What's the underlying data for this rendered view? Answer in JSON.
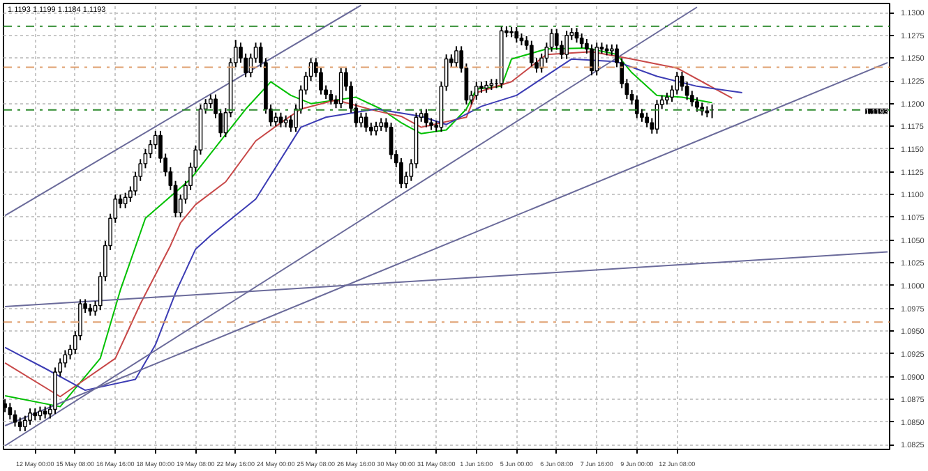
{
  "chart_data": {
    "type": "candlestick",
    "title": "1.1193 1.1199 1.1184 1.1193",
    "color": "#000000",
    "categories": [
      null,
      null,
      null,
      null,
      null,
      null,
      "12 May 00:00",
      null,
      null,
      null,
      null,
      null,
      null,
      null,
      "15 May 08:00",
      null,
      null,
      null,
      null,
      null,
      null,
      null,
      "16 May 16:00",
      null,
      null,
      null,
      null,
      null,
      null,
      null,
      "18 May 00:00",
      null,
      null,
      null,
      null,
      null,
      null,
      null,
      "19 May 08:00",
      null,
      null,
      null,
      null,
      null,
      null,
      null,
      "22 May 16:00",
      null,
      null,
      null,
      null,
      null,
      null,
      null,
      "24 May 00:00",
      null,
      null,
      null,
      null,
      null,
      null,
      null,
      "25 May 08:00",
      null,
      null,
      null,
      null,
      null,
      null,
      null,
      "26 May 16:00",
      null,
      null,
      null,
      null,
      null,
      null,
      null,
      "30 May 00:00",
      null,
      null,
      null,
      null,
      null,
      null,
      null,
      "31 May 08:00",
      null,
      null,
      null,
      null,
      null,
      null,
      null,
      "1 Jun 16:00",
      null,
      null,
      null,
      null,
      null,
      null,
      null,
      "5 Jun 00:00",
      null,
      null,
      null,
      null,
      null,
      null,
      null,
      "6 Jun 08:00",
      null,
      null,
      null,
      null,
      null,
      null,
      null,
      "7 Jun 16:00",
      null,
      null,
      null,
      null,
      null,
      null,
      null,
      "9 Jun 00:00",
      null,
      null,
      null,
      null,
      null,
      null,
      null,
      "12 Jun 08:00",
      null,
      null,
      null,
      null,
      null,
      null,
      null,
      null,
      null,
      null,
      null,
      null,
      null,
      null,
      null,
      null,
      null,
      null,
      null,
      null,
      null,
      null,
      null,
      null,
      null,
      null,
      null,
      null,
      null,
      null,
      null,
      null,
      null,
      null,
      null,
      null,
      null,
      null,
      null,
      null,
      null,
      null
    ],
    "ohlc": [
      [
        1.087,
        1.0875,
        1.0861,
        1.0866
      ],
      [
        1.0866,
        1.0871,
        1.0853,
        1.0858
      ],
      [
        1.0858,
        1.0863,
        1.0845,
        1.085
      ],
      [
        1.085,
        1.0855,
        1.084,
        1.0845
      ],
      [
        1.0845,
        1.0857,
        1.084,
        1.0852
      ],
      [
        1.0852,
        1.0865,
        1.0847,
        1.086
      ],
      [
        1.086,
        1.0865,
        1.0852,
        1.0857
      ],
      [
        1.0857,
        1.0867,
        1.0852,
        1.0862
      ],
      [
        1.0862,
        1.0867,
        1.0854,
        1.0859
      ],
      [
        1.0859,
        1.0869,
        1.0854,
        1.0864
      ],
      [
        1.0864,
        1.091,
        1.0859,
        1.0905
      ],
      [
        1.0905,
        1.092,
        1.09,
        1.0915
      ],
      [
        1.0915,
        1.0929,
        1.091,
        1.0924
      ],
      [
        1.0924,
        1.0935,
        1.0919,
        1.093
      ],
      [
        1.093,
        1.095,
        1.0925,
        1.0945
      ],
      [
        1.0945,
        1.0985,
        1.094,
        1.098
      ],
      [
        1.098,
        1.0985,
        1.097,
        1.0975
      ],
      [
        1.0975,
        1.098,
        1.0967,
        1.0972
      ],
      [
        1.0972,
        1.0983,
        1.0967,
        1.0978
      ],
      [
        1.0978,
        1.1015,
        1.0973,
        1.101
      ],
      [
        1.101,
        1.1049,
        1.1005,
        1.1044
      ],
      [
        1.1044,
        1.1079,
        1.1039,
        1.1074
      ],
      [
        1.1074,
        1.11,
        1.1069,
        1.1095
      ],
      [
        1.1095,
        1.11,
        1.1085,
        1.109
      ],
      [
        1.109,
        1.1102,
        1.1085,
        1.1097
      ],
      [
        1.1097,
        1.1109,
        1.1092,
        1.1104
      ],
      [
        1.1104,
        1.1125,
        1.1099,
        1.112
      ],
      [
        1.112,
        1.1139,
        1.1115,
        1.1134
      ],
      [
        1.1134,
        1.115,
        1.1129,
        1.1145
      ],
      [
        1.1145,
        1.116,
        1.114,
        1.1155
      ],
      [
        1.1155,
        1.117,
        1.115,
        1.1165
      ],
      [
        1.1165,
        1.117,
        1.1135,
        1.114
      ],
      [
        1.114,
        1.1145,
        1.112,
        1.1125
      ],
      [
        1.1125,
        1.113,
        1.1105,
        1.111
      ],
      [
        1.111,
        1.1115,
        1.1075,
        1.108
      ],
      [
        1.108,
        1.11,
        1.1075,
        1.1095
      ],
      [
        1.1095,
        1.1115,
        1.109,
        1.111
      ],
      [
        1.111,
        1.1135,
        1.1105,
        1.113
      ],
      [
        1.113,
        1.1154,
        1.1125,
        1.1149
      ],
      [
        1.1149,
        1.1199,
        1.1144,
        1.1194
      ],
      [
        1.1194,
        1.1205,
        1.1189,
        1.12
      ],
      [
        1.12,
        1.121,
        1.1195,
        1.1205
      ],
      [
        1.1205,
        1.121,
        1.1184,
        1.1189
      ],
      [
        1.1189,
        1.1194,
        1.1163,
        1.1168
      ],
      [
        1.1168,
        1.1195,
        1.1163,
        1.119
      ],
      [
        1.119,
        1.125,
        1.1185,
        1.1245
      ],
      [
        1.1245,
        1.127,
        1.124,
        1.1262
      ],
      [
        1.1262,
        1.1267,
        1.1245,
        1.125
      ],
      [
        1.125,
        1.1255,
        1.1229,
        1.1234
      ],
      [
        1.1234,
        1.1255,
        1.1229,
        1.125
      ],
      [
        1.125,
        1.1267,
        1.1245,
        1.1262
      ],
      [
        1.1262,
        1.1267,
        1.124,
        1.1245
      ],
      [
        1.1245,
        1.125,
        1.1189,
        1.1194
      ],
      [
        1.1194,
        1.1199,
        1.1175,
        1.118
      ],
      [
        1.118,
        1.119,
        1.1175,
        1.1185
      ],
      [
        1.1185,
        1.119,
        1.1174,
        1.1179
      ],
      [
        1.1179,
        1.1187,
        1.1174,
        1.1182
      ],
      [
        1.1182,
        1.1187,
        1.1169,
        1.1174
      ],
      [
        1.1174,
        1.1199,
        1.1169,
        1.1194
      ],
      [
        1.1194,
        1.122,
        1.1189,
        1.1215
      ],
      [
        1.1215,
        1.1235,
        1.121,
        1.123
      ],
      [
        1.123,
        1.125,
        1.1225,
        1.1245
      ],
      [
        1.1245,
        1.125,
        1.1229,
        1.1234
      ],
      [
        1.1234,
        1.1239,
        1.121,
        1.1215
      ],
      [
        1.1215,
        1.122,
        1.1205,
        1.121
      ],
      [
        1.121,
        1.1215,
        1.1199,
        1.1204
      ],
      [
        1.1204,
        1.1209,
        1.1195,
        1.12
      ],
      [
        1.12,
        1.1239,
        1.1195,
        1.1234
      ],
      [
        1.1234,
        1.1239,
        1.1214,
        1.1219
      ],
      [
        1.1219,
        1.1224,
        1.119,
        1.1195
      ],
      [
        1.1195,
        1.12,
        1.1174,
        1.1179
      ],
      [
        1.1179,
        1.119,
        1.1174,
        1.1185
      ],
      [
        1.1185,
        1.119,
        1.1169,
        1.1174
      ],
      [
        1.1174,
        1.1179,
        1.1165,
        1.117
      ],
      [
        1.117,
        1.118,
        1.1165,
        1.1175
      ],
      [
        1.1175,
        1.1184,
        1.117,
        1.1179
      ],
      [
        1.1179,
        1.1184,
        1.1169,
        1.1174
      ],
      [
        1.1174,
        1.1179,
        1.1139,
        1.1144
      ],
      [
        1.1144,
        1.1149,
        1.113,
        1.1135
      ],
      [
        1.1135,
        1.114,
        1.1107,
        1.1112
      ],
      [
        1.1112,
        1.1125,
        1.1107,
        1.112
      ],
      [
        1.112,
        1.1139,
        1.1115,
        1.1134
      ],
      [
        1.1134,
        1.119,
        1.1129,
        1.1185
      ],
      [
        1.1185,
        1.1194,
        1.118,
        1.1189
      ],
      [
        1.1189,
        1.1194,
        1.1174,
        1.1179
      ],
      [
        1.1179,
        1.1184,
        1.1171,
        1.1176
      ],
      [
        1.1176,
        1.1181,
        1.1169,
        1.1174
      ],
      [
        1.1174,
        1.1224,
        1.1169,
        1.1219
      ],
      [
        1.1219,
        1.1254,
        1.1214,
        1.1249
      ],
      [
        1.1249,
        1.1254,
        1.124,
        1.1245
      ],
      [
        1.1245,
        1.1263,
        1.124,
        1.1258
      ],
      [
        1.1258,
        1.1263,
        1.1234,
        1.1239
      ],
      [
        1.1239,
        1.1244,
        1.1199,
        1.1204
      ],
      [
        1.1204,
        1.1214,
        1.1199,
        1.1209
      ],
      [
        1.1209,
        1.1224,
        1.1204,
        1.1219
      ],
      [
        1.1219,
        1.1224,
        1.1212,
        1.1217
      ],
      [
        1.1217,
        1.1225,
        1.1212,
        1.122
      ],
      [
        1.122,
        1.1227,
        1.1215,
        1.1222
      ],
      [
        1.1222,
        1.1227,
        1.1217,
        1.1222
      ],
      [
        1.1222,
        1.1285,
        1.1217,
        1.128
      ],
      [
        1.128,
        1.1285,
        1.1273,
        1.1278
      ],
      [
        1.1278,
        1.1284,
        1.1273,
        1.1279
      ],
      [
        1.1279,
        1.1284,
        1.1267,
        1.1272
      ],
      [
        1.1272,
        1.1277,
        1.1264,
        1.1269
      ],
      [
        1.1269,
        1.1274,
        1.1259,
        1.1264
      ],
      [
        1.1264,
        1.1269,
        1.124,
        1.1245
      ],
      [
        1.1245,
        1.125,
        1.1234,
        1.1239
      ],
      [
        1.1239,
        1.1255,
        1.1234,
        1.125
      ],
      [
        1.125,
        1.1267,
        1.1245,
        1.1262
      ],
      [
        1.1262,
        1.1282,
        1.1257,
        1.1277
      ],
      [
        1.1277,
        1.1282,
        1.1259,
        1.1264
      ],
      [
        1.1264,
        1.1269,
        1.1249,
        1.1254
      ],
      [
        1.1254,
        1.128,
        1.1249,
        1.1275
      ],
      [
        1.1275,
        1.1283,
        1.127,
        1.1278
      ],
      [
        1.1278,
        1.1283,
        1.1267,
        1.1272
      ],
      [
        1.1272,
        1.1277,
        1.1261,
        1.1266
      ],
      [
        1.1266,
        1.1271,
        1.1255,
        1.126
      ],
      [
        1.126,
        1.1265,
        1.1231,
        1.1236
      ],
      [
        1.1236,
        1.1267,
        1.1231,
        1.1262
      ],
      [
        1.1262,
        1.1267,
        1.1255,
        1.126
      ],
      [
        1.126,
        1.1265,
        1.1253,
        1.1258
      ],
      [
        1.1258,
        1.1265,
        1.1253,
        1.126
      ],
      [
        1.126,
        1.1265,
        1.124,
        1.1245
      ],
      [
        1.1245,
        1.125,
        1.1217,
        1.1222
      ],
      [
        1.1222,
        1.1227,
        1.1205,
        1.121
      ],
      [
        1.121,
        1.1215,
        1.1199,
        1.1204
      ],
      [
        1.1204,
        1.1209,
        1.1184,
        1.1189
      ],
      [
        1.1189,
        1.1194,
        1.118,
        1.1185
      ],
      [
        1.1185,
        1.119,
        1.1174,
        1.1179
      ],
      [
        1.1179,
        1.1184,
        1.1167,
        1.1172
      ],
      [
        1.1172,
        1.1204,
        1.1167,
        1.1199
      ],
      [
        1.1199,
        1.1209,
        1.1194,
        1.1204
      ],
      [
        1.1204,
        1.1212,
        1.1199,
        1.1207
      ],
      [
        1.1207,
        1.122,
        1.1202,
        1.1215
      ],
      [
        1.1215,
        1.1235,
        1.121,
        1.123
      ],
      [
        1.123,
        1.1235,
        1.1214,
        1.1219
      ],
      [
        1.1219,
        1.1224,
        1.1204,
        1.1209
      ],
      [
        1.1209,
        1.1214,
        1.1197,
        1.1202
      ],
      [
        1.1202,
        1.1207,
        1.1191,
        1.1196
      ],
      [
        1.1196,
        1.1201,
        1.1187,
        1.1192
      ],
      [
        1.1192,
        1.1197,
        1.1185,
        1.119
      ],
      [
        1.1193,
        1.1199,
        1.1184,
        1.1193
      ],
      null,
      null,
      null,
      null,
      null,
      null,
      null,
      null,
      null,
      null,
      null,
      null,
      null,
      null,
      null,
      null,
      null,
      null,
      null,
      null,
      null,
      null,
      null,
      null,
      null,
      null,
      null,
      null,
      null,
      null,
      null,
      null,
      null,
      null,
      null
    ],
    "series": [
      {
        "type": "line",
        "color": "#00c000",
        "values": [
          1.0879,
          null,
          null,
          null,
          null,
          null,
          null,
          null,
          null,
          null,
          null,
          1.0867,
          null,
          null,
          null,
          null,
          null,
          null,
          null,
          1.092,
          null,
          null,
          null,
          1.0995,
          null,
          null,
          null,
          null,
          1.1074,
          null,
          null,
          null,
          null,
          null,
          null,
          null,
          null,
          1.1117,
          null,
          null,
          null,
          null,
          null,
          1.1159,
          null,
          null,
          null,
          null,
          1.1194,
          null,
          null,
          null,
          null,
          1.1224,
          null,
          null,
          null,
          1.1209,
          null,
          null,
          null,
          1.12,
          null,
          null,
          null,
          null,
          null,
          null,
          null,
          null,
          1.1207,
          null,
          null,
          null,
          null,
          1.1194,
          null,
          null,
          null,
          1.1179,
          null,
          null,
          null,
          1.1167,
          null,
          null,
          null,
          null,
          1.1171,
          null,
          null,
          null,
          1.1194,
          null,
          1.1216,
          null,
          null,
          null,
          null,
          1.1219,
          null,
          1.1249,
          null,
          null,
          null,
          null,
          null,
          null,
          1.126,
          null,
          null,
          null,
          null,
          null,
          null,
          null,
          1.1261,
          null,
          null,
          null,
          null,
          null,
          1.1254,
          null,
          null,
          1.1234,
          null,
          null,
          null,
          null,
          1.1209,
          null,
          null,
          null,
          null,
          1.1207,
          null,
          null,
          null,
          null,
          null,
          1.1201,
          null,
          null,
          null,
          null,
          null,
          null,
          null,
          null,
          null,
          null,
          null,
          null,
          null,
          null,
          null,
          null,
          null,
          null,
          null,
          null,
          null,
          null,
          null,
          null,
          null,
          null,
          null,
          null,
          null,
          null,
          null,
          null,
          null,
          null,
          null
        ]
      },
      {
        "type": "line",
        "color": "#c84848",
        "values": [
          1.0915,
          null,
          null,
          null,
          null,
          null,
          null,
          null,
          null,
          null,
          null,
          1.0878,
          null,
          null,
          null,
          null,
          null,
          null,
          null,
          null,
          null,
          null,
          1.092,
          null,
          null,
          null,
          null,
          1.098,
          null,
          null,
          null,
          null,
          null,
          1.1044,
          null,
          1.1069,
          null,
          null,
          1.1089,
          null,
          null,
          null,
          null,
          null,
          1.1114,
          null,
          null,
          null,
          null,
          null,
          1.1159,
          null,
          null,
          null,
          null,
          1.1179,
          null,
          null,
          null,
          1.1194,
          null,
          null,
          null,
          null,
          null,
          null,
          1.1204,
          null,
          null,
          null,
          null,
          null,
          null,
          null,
          1.1192,
          null,
          null,
          null,
          null,
          1.1186,
          null,
          null,
          null,
          1.1174,
          null,
          null,
          null,
          null,
          null,
          null,
          null,
          null,
          1.1185,
          null,
          1.1212,
          null,
          null,
          null,
          null,
          null,
          null,
          1.1224,
          null,
          null,
          null,
          null,
          null,
          null,
          1.1254,
          null,
          null,
          null,
          null,
          null,
          null,
          null,
          null,
          1.1257,
          null,
          null,
          null,
          null,
          null,
          null,
          null,
          1.1249,
          null,
          null,
          null,
          null,
          null,
          null,
          null,
          null,
          1.1239,
          null,
          null,
          null,
          null,
          null,
          null,
          null,
          1.1215,
          null,
          null,
          1.1206,
          null,
          null,
          null,
          null,
          null,
          null,
          null,
          null,
          null,
          null,
          null,
          null,
          null,
          null,
          null,
          null,
          null,
          null,
          null,
          null,
          null,
          null,
          null,
          null,
          null,
          null,
          null,
          null,
          null,
          null,
          null
        ]
      },
      {
        "type": "line",
        "color": "#3c3cb4",
        "values": [
          1.0932,
          null,
          null,
          null,
          null,
          null,
          null,
          null,
          1.0909,
          null,
          null,
          null,
          null,
          null,
          null,
          null,
          1.0885,
          null,
          null,
          null,
          null,
          null,
          null,
          null,
          null,
          null,
          1.0897,
          null,
          null,
          null,
          1.0935,
          null,
          null,
          null,
          1.0992,
          null,
          null,
          null,
          1.104,
          null,
          null,
          1.1055,
          null,
          null,
          null,
          null,
          null,
          null,
          null,
          null,
          1.1095,
          null,
          null,
          null,
          null,
          null,
          null,
          null,
          null,
          1.1174,
          null,
          null,
          null,
          null,
          1.1185,
          null,
          null,
          null,
          null,
          null,
          null,
          null,
          null,
          null,
          1.1194,
          null,
          null,
          null,
          null,
          null,
          null,
          null,
          null,
          1.1186,
          null,
          null,
          null,
          null,
          1.1177,
          null,
          null,
          null,
          null,
          null,
          null,
          1.1197,
          null,
          null,
          null,
          null,
          null,
          null,
          1.1209,
          null,
          null,
          null,
          null,
          null,
          null,
          null,
          null,
          null,
          null,
          1.1249,
          null,
          null,
          null,
          null,
          null,
          null,
          null,
          null,
          1.1246,
          null,
          null,
          null,
          null,
          null,
          null,
          null,
          1.123,
          null,
          null,
          null,
          null,
          null,
          null,
          null,
          1.1219,
          null,
          null,
          null,
          null,
          null,
          null,
          null,
          null,
          1.1212,
          null,
          null,
          null,
          null,
          null,
          null,
          null,
          null,
          null,
          null,
          null,
          null,
          null,
          null,
          null,
          null,
          null,
          null,
          null,
          null,
          null,
          null,
          null,
          null,
          null,
          null,
          null,
          null,
          null
        ]
      },
      {
        "type": "line",
        "color": "#6a6a9a",
        "values": [
          1.1077,
          null,
          null,
          null,
          null,
          null,
          null,
          null,
          null,
          null,
          null,
          null,
          null,
          null,
          null,
          null,
          null,
          null,
          null,
          null,
          null,
          null,
          null,
          null,
          null,
          null,
          null,
          null,
          null,
          null,
          null,
          null,
          null,
          null,
          null,
          null,
          null,
          null,
          null,
          null,
          null,
          null,
          null,
          null,
          null,
          null,
          null,
          null,
          null,
          null,
          null,
          null,
          null,
          null,
          null,
          null,
          null,
          null,
          null,
          null,
          null,
          null,
          null,
          null,
          null,
          null,
          null,
          null,
          null,
          null,
          null,
          1.1308,
          null,
          null,
          null,
          null,
          null,
          null,
          null,
          null,
          null,
          null,
          null,
          null,
          null,
          null,
          null,
          null,
          null,
          null,
          null,
          null,
          null,
          null,
          null,
          null,
          null,
          null,
          null,
          null,
          null,
          null,
          null,
          null,
          null,
          null,
          null,
          null,
          null,
          null,
          null,
          null,
          null,
          null,
          null,
          null,
          null,
          null,
          null,
          null,
          null,
          null,
          null,
          null,
          null,
          null,
          null,
          null,
          null,
          null,
          null,
          null,
          null,
          null,
          null,
          null,
          null,
          null,
          null,
          null,
          null,
          null,
          null,
          null,
          null,
          null,
          null,
          null,
          null,
          null,
          null,
          null,
          null,
          null,
          null,
          null,
          null,
          null,
          null,
          null,
          null,
          null,
          null,
          null,
          null,
          null,
          null,
          null,
          null,
          null,
          null,
          null,
          null,
          null,
          null,
          null,
          null
        ]
      },
      {
        "type": "line",
        "color": "#6a6a9a",
        "values": [
          1.0824,
          null,
          null,
          null,
          null,
          null,
          null,
          null,
          null,
          null,
          null,
          null,
          null,
          null,
          null,
          null,
          null,
          null,
          null,
          null,
          null,
          null,
          null,
          null,
          null,
          null,
          null,
          null,
          null,
          null,
          null,
          null,
          null,
          null,
          null,
          null,
          null,
          null,
          null,
          null,
          null,
          null,
          null,
          null,
          null,
          null,
          null,
          null,
          null,
          null,
          null,
          null,
          null,
          null,
          null,
          null,
          null,
          null,
          null,
          null,
          null,
          null,
          null,
          null,
          null,
          null,
          null,
          null,
          null,
          null,
          null,
          null,
          null,
          null,
          null,
          null,
          null,
          null,
          null,
          null,
          null,
          null,
          null,
          null,
          null,
          null,
          null,
          null,
          null,
          null,
          null,
          null,
          null,
          null,
          null,
          null,
          null,
          null,
          null,
          null,
          null,
          null,
          null,
          null,
          null,
          null,
          null,
          null,
          null,
          null,
          null,
          null,
          null,
          null,
          null,
          null,
          null,
          null,
          null,
          null,
          null,
          null,
          null,
          null,
          null,
          null,
          null,
          null,
          null,
          null,
          null,
          null,
          null,
          null,
          null,
          null,
          null,
          null,
          1.1306,
          null,
          null,
          null,
          null,
          null,
          null,
          null,
          null,
          null,
          null,
          null,
          null,
          null,
          null,
          null,
          null,
          null,
          null,
          null,
          null,
          null,
          null,
          null,
          null,
          null,
          null,
          null,
          null,
          null,
          null,
          null,
          null,
          null,
          null,
          null,
          null,
          null,
          null
        ]
      },
      {
        "type": "line",
        "color": "#6a6a9a",
        "values": [
          1.0846,
          null,
          null,
          null,
          null,
          null,
          null,
          null,
          null,
          null,
          null,
          null,
          null,
          null,
          null,
          null,
          null,
          null,
          null,
          null,
          null,
          null,
          null,
          null,
          null,
          null,
          null,
          null,
          null,
          null,
          null,
          null,
          null,
          null,
          null,
          null,
          null,
          null,
          null,
          null,
          null,
          null,
          null,
          null,
          null,
          null,
          null,
          null,
          null,
          null,
          null,
          null,
          null,
          null,
          null,
          null,
          null,
          null,
          null,
          null,
          null,
          null,
          null,
          null,
          null,
          null,
          null,
          null,
          null,
          null,
          null,
          null,
          null,
          null,
          null,
          null,
          null,
          null,
          null,
          null,
          null,
          null,
          null,
          null,
          null,
          null,
          null,
          null,
          null,
          null,
          null,
          null,
          null,
          null,
          null,
          null,
          null,
          null,
          null,
          null,
          null,
          null,
          null,
          null,
          null,
          null,
          null,
          null,
          null,
          null,
          null,
          null,
          null,
          null,
          null,
          null,
          null,
          null,
          null,
          null,
          null,
          null,
          null,
          null,
          null,
          null,
          null,
          null,
          null,
          null,
          null,
          null,
          null,
          null,
          null,
          null,
          null,
          null,
          null,
          null,
          null,
          null,
          null,
          null,
          null,
          null,
          null,
          null,
          null,
          null,
          null,
          null,
          null,
          null,
          null,
          null,
          null,
          null,
          null,
          null,
          null,
          null,
          null,
          null,
          null,
          null,
          null,
          null,
          null,
          null,
          null,
          null,
          null,
          null,
          null,
          null,
          1.1245
        ]
      },
      {
        "type": "line",
        "color": "#6a6a9a",
        "values": [
          1.0977,
          null,
          null,
          null,
          null,
          null,
          null,
          null,
          null,
          null,
          null,
          null,
          null,
          null,
          null,
          null,
          null,
          null,
          null,
          null,
          null,
          null,
          null,
          null,
          null,
          null,
          null,
          null,
          null,
          null,
          null,
          null,
          null,
          null,
          null,
          null,
          null,
          null,
          null,
          null,
          null,
          null,
          null,
          null,
          null,
          null,
          null,
          null,
          null,
          null,
          null,
          null,
          null,
          null,
          null,
          null,
          null,
          null,
          null,
          null,
          null,
          null,
          null,
          null,
          null,
          null,
          null,
          null,
          null,
          null,
          null,
          null,
          null,
          null,
          null,
          null,
          null,
          null,
          null,
          null,
          null,
          null,
          null,
          null,
          null,
          null,
          null,
          null,
          null,
          null,
          null,
          null,
          null,
          null,
          null,
          null,
          null,
          null,
          null,
          null,
          null,
          null,
          null,
          null,
          null,
          null,
          null,
          null,
          null,
          null,
          null,
          null,
          null,
          null,
          null,
          null,
          null,
          null,
          null,
          null,
          null,
          null,
          null,
          null,
          null,
          null,
          null,
          null,
          null,
          null,
          null,
          null,
          null,
          null,
          null,
          null,
          null,
          null,
          null,
          null,
          null,
          null,
          null,
          null,
          null,
          null,
          null,
          null,
          null,
          null,
          null,
          null,
          null,
          null,
          null,
          null,
          null,
          null,
          null,
          null,
          null,
          null,
          null,
          null,
          null,
          null,
          null,
          null,
          null,
          null,
          null,
          null,
          null,
          null,
          null,
          null,
          1.1037
        ]
      }
    ],
    "ref_lines": [
      {
        "axis": "y",
        "value": 1.1285,
        "color": "#2e8b2e",
        "line_style": "dashed"
      },
      {
        "axis": "y",
        "value": 1.1193,
        "color": "#2e8b2e",
        "line_style": "dashed",
        "label": "1.1193"
      },
      {
        "axis": "y",
        "value": 1.124,
        "color": "#e0a070",
        "line_style": "dashed"
      },
      {
        "axis": "y",
        "value": 1.096,
        "color": "#e0a070",
        "line_style": "dashed"
      }
    ],
    "ylim": [
      1.082,
      1.131
    ],
    "yticks": [
      {
        "value": 1.0825,
        "label": "1.0825"
      },
      {
        "value": 1.085,
        "label": "1.0850"
      },
      {
        "value": 1.0875,
        "label": "1.0875"
      },
      {
        "value": 1.09,
        "label": "1.0900"
      },
      {
        "value": 1.0925,
        "label": "1.0925"
      },
      {
        "value": 1.095,
        "label": "1.0950"
      },
      {
        "value": 1.0975,
        "label": "1.0975"
      },
      {
        "value": 1.1,
        "label": "1.1000"
      },
      {
        "value": 1.1025,
        "label": "1.1025"
      },
      {
        "value": 1.105,
        "label": "1.1050"
      },
      {
        "value": 1.1075,
        "label": "1.1075"
      },
      {
        "value": 1.11,
        "label": "1.1100"
      },
      {
        "value": 1.1125,
        "label": "1.1125"
      },
      {
        "value": 1.115,
        "label": "1.1150"
      },
      {
        "value": 1.1175,
        "label": "1.1175"
      },
      {
        "value": 1.12,
        "label": "1.1200"
      },
      {
        "value": 1.1225,
        "label": "1.1225"
      },
      {
        "value": 1.125,
        "label": "1.1250"
      },
      {
        "value": 1.1275,
        "label": "1.1275"
      },
      {
        "value": 1.13,
        "label": "1.1300"
      }
    ],
    "grid": true
  }
}
